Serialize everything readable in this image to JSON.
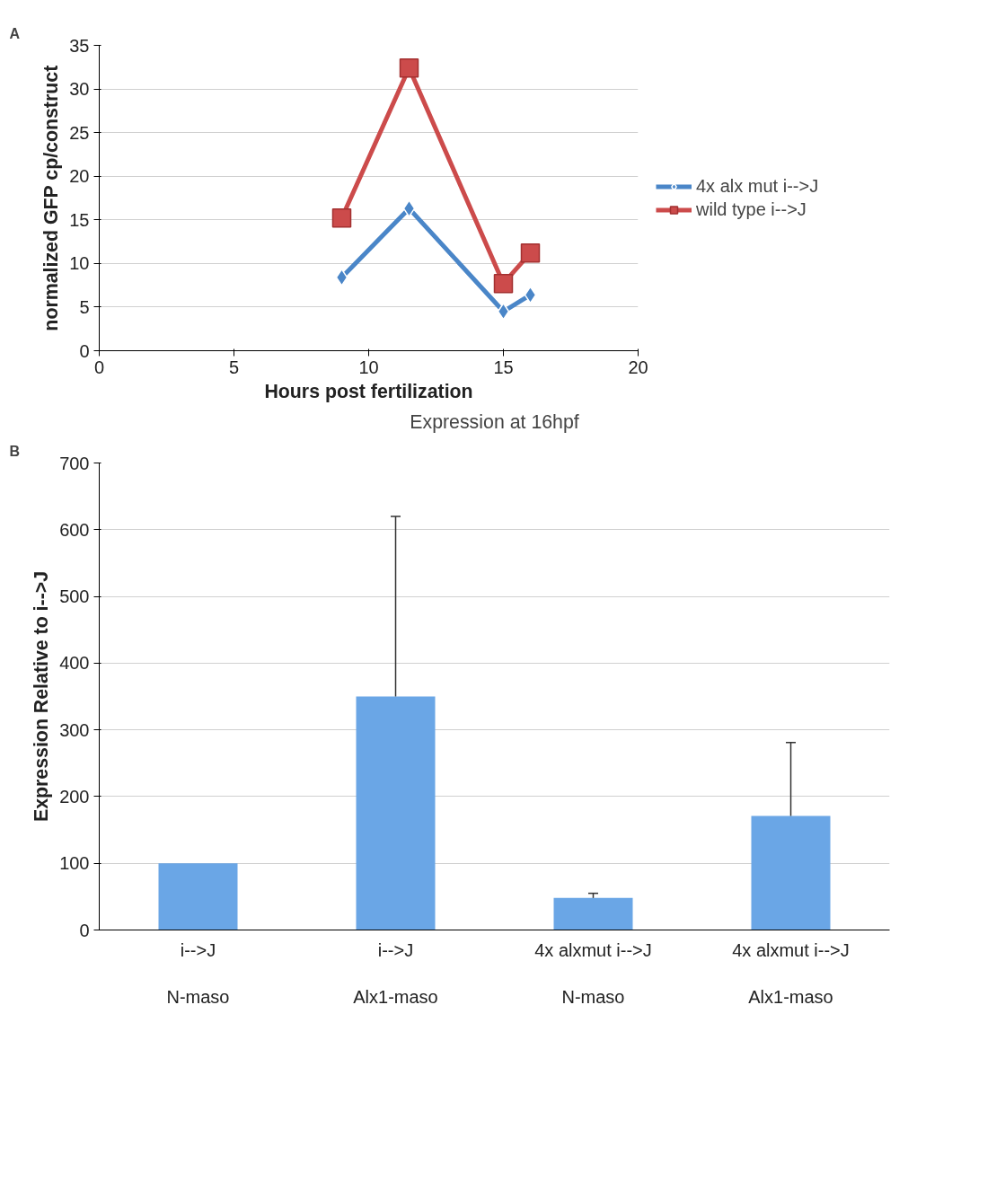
{
  "chart_data": [
    {
      "type": "line",
      "annotations": [
        "A"
      ],
      "xlabel": "Hours post fertilization",
      "ylabel": "normalized GFP cp/construct",
      "x": [
        9,
        11.5,
        15,
        16
      ],
      "series": [
        {
          "name": "4x alx mut i-->J",
          "color": "#4a86c8",
          "marker": "diamond",
          "values": [
            8.4,
            16.3,
            4.5,
            6.4
          ]
        },
        {
          "name": "wild type i-->J",
          "color": "#cc4b4b",
          "marker": "square",
          "values": [
            15.2,
            32.4,
            7.7,
            11.2
          ]
        }
      ],
      "xlim": [
        0,
        20
      ],
      "xticks": [
        0,
        5,
        10,
        15,
        20
      ],
      "ylim": [
        0,
        35
      ],
      "yticks": [
        0,
        5,
        10,
        15,
        20,
        25,
        30,
        35
      ],
      "grid": "y",
      "legend": "right",
      "line_style": "solid"
    },
    {
      "type": "bar",
      "annotations": [
        "B"
      ],
      "title": "Expression at 16hpf",
      "ylabel": "Expression Relative to i-->J",
      "categories": [
        "i-->J\n\nN-maso",
        "i-->J\n\nAlx1-maso",
        "4x alxmut i-->J\n\nN-maso",
        "4x alxmut i-->J\n\nAlx1-maso"
      ],
      "values": [
        100,
        350,
        48,
        171
      ],
      "color": "#6aa6e6",
      "errors": [
        null,
        [
          350,
          620
        ],
        [
          48,
          55
        ],
        [
          171,
          281
        ]
      ],
      "ylim": [
        0,
        700
      ],
      "yticks": [
        0,
        100,
        200,
        300,
        400,
        500,
        600,
        700
      ],
      "grid": "y"
    }
  ]
}
